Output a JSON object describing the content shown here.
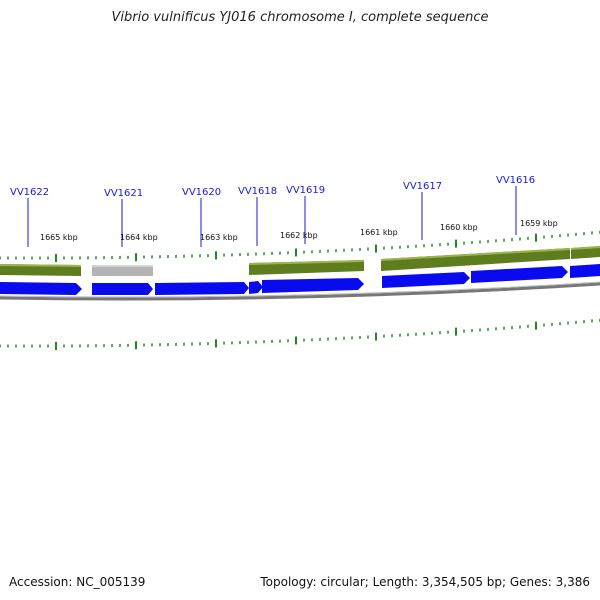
{
  "title": "Vibrio vulnificus YJ016 chromosome I, complete sequence",
  "genes": [
    {
      "label": "VV1622"
    },
    {
      "label": "VV1621"
    },
    {
      "label": "VV1620"
    },
    {
      "label": "VV1618"
    },
    {
      "label": "VV1619"
    },
    {
      "label": "VV1617"
    },
    {
      "label": "VV1616"
    }
  ],
  "positions": [
    {
      "label": "1665 kbp"
    },
    {
      "label": "1664 kbp"
    },
    {
      "label": "1663 kbp"
    },
    {
      "label": "1662 kbp"
    },
    {
      "label": "1661 kbp"
    },
    {
      "label": "1660 kbp"
    },
    {
      "label": "1659 kbp"
    }
  ],
  "footer": {
    "accession": "Accession: NC_005139",
    "summary": "Topology: circular; Length: 3,354,505 bp; Genes: 3,386"
  },
  "colors": {
    "cds": "#0a0aee",
    "gene": "#5e7d1f",
    "gene_highlight": "#9ab54a",
    "pseudo": "#b4b4b4",
    "backbone": "#777777",
    "tick": "#1f8a1f",
    "label": "#1a1ad6"
  }
}
